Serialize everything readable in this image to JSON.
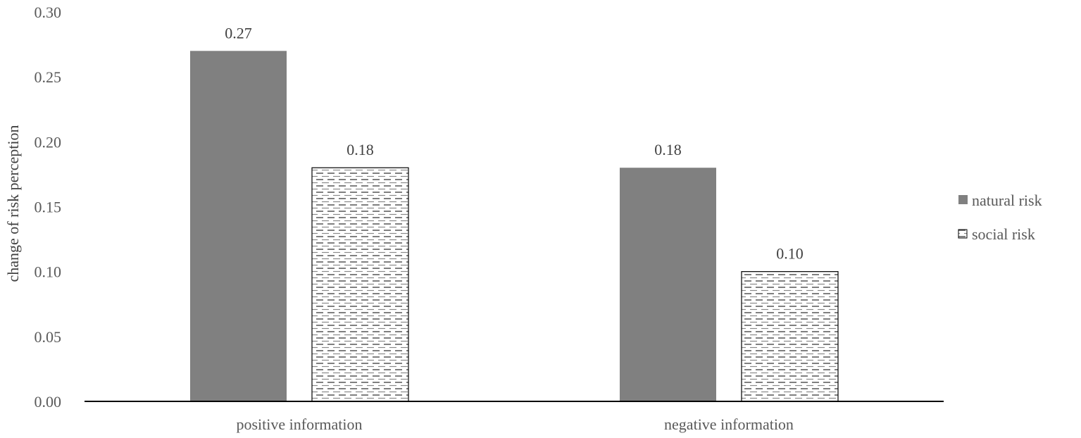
{
  "chart_data": {
    "type": "bar",
    "categories": [
      "positive information",
      "negative information"
    ],
    "series": [
      {
        "name": "natural risk",
        "values": [
          0.27,
          0.18
        ],
        "color": "#808080",
        "pattern": "solid"
      },
      {
        "name": "social risk",
        "values": [
          0.18,
          0.1
        ],
        "color": "#ffffff",
        "pattern": "dashed-horizontal"
      }
    ],
    "data_labels": [
      [
        "0.27",
        "0.18"
      ],
      [
        "0.18",
        "0.10"
      ]
    ],
    "title": "",
    "xlabel": "",
    "ylabel": "change of risk perception",
    "ylim": [
      0,
      0.3
    ],
    "yticks": [
      0,
      0.05,
      0.1,
      0.15,
      0.2,
      0.25,
      0.3
    ],
    "ytick_labels": [
      "0.00",
      "0.05",
      "0.10",
      "0.15",
      "0.20",
      "0.25",
      "0.30"
    ],
    "grid": false,
    "legend_position": "right",
    "axis_color": "#000000",
    "label_color": "#595959"
  }
}
